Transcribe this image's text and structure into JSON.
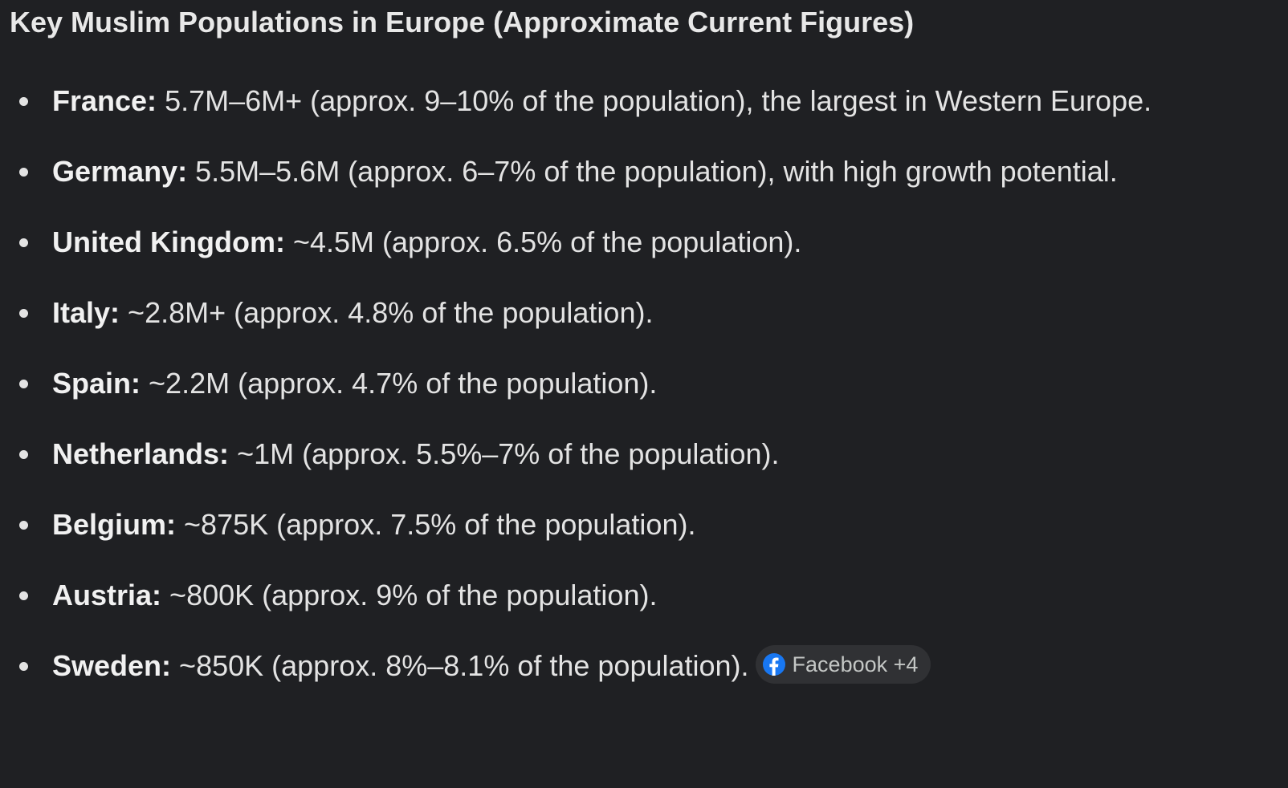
{
  "title": "Key Muslim Populations in Europe (Approximate Current Figures)",
  "items": [
    {
      "label": "France:",
      "text": "5.7M–6M+ (approx. 9–10% of the population), the largest in Western Europe."
    },
    {
      "label": "Germany:",
      "text": "5.5M–5.6M (approx. 6–7% of the population), with high growth potential."
    },
    {
      "label": "United Kingdom:",
      "text": "~4.5M (approx. 6.5% of the population)."
    },
    {
      "label": "Italy:",
      "text": "~2.8M+ (approx. 4.8% of the population)."
    },
    {
      "label": "Spain:",
      "text": "~2.2M (approx. 4.7% of the population)."
    },
    {
      "label": "Netherlands:",
      "text": "~1M (approx. 5.5%–7% of the population)."
    },
    {
      "label": "Belgium:",
      "text": "~875K (approx. 7.5% of the population)."
    },
    {
      "label": "Austria:",
      "text": "~800K (approx. 9% of the population)."
    },
    {
      "label": "Sweden:",
      "text": "~850K (approx. 8%–8.1% of the population)."
    }
  ],
  "chip": {
    "label": "Facebook +4"
  }
}
